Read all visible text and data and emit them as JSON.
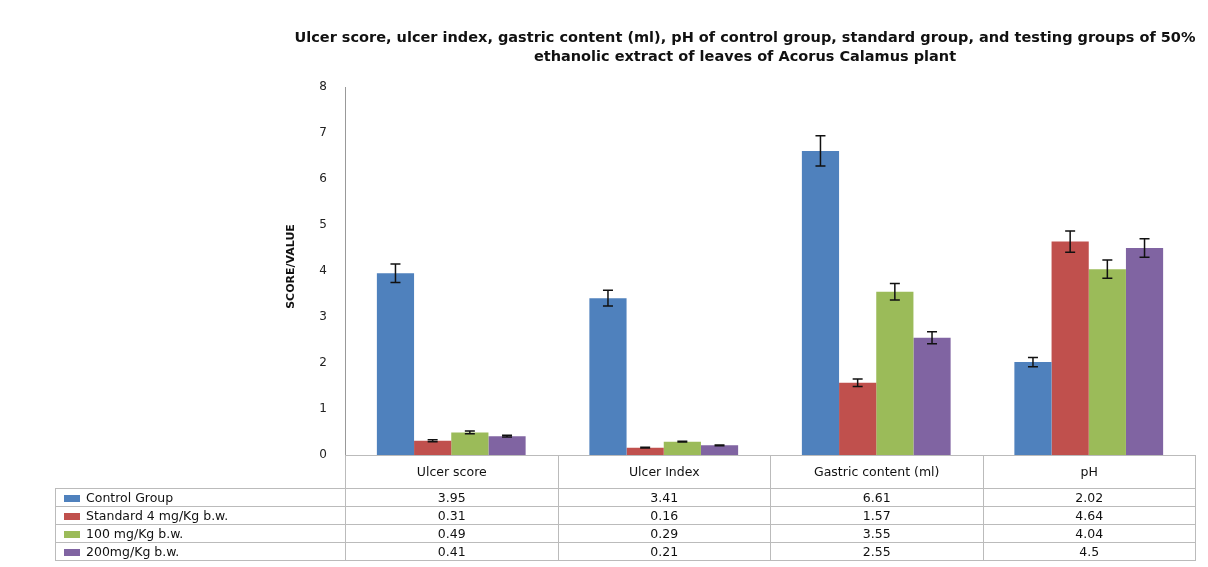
{
  "chart_data": {
    "type": "bar",
    "title": "Ulcer score, ulcer index, gastric content (ml), pH of control group, standard group, and testing groups of 50% ethanolic extract of leaves of Acorus Calamus plant",
    "ylabel": "SCORE/VALUE",
    "categories": [
      "Ulcer score",
      "Ulcer Index",
      "Gastric content (ml)",
      "pH"
    ],
    "series": [
      {
        "name": "Control Group",
        "color": "#4f81bd",
        "values": [
          3.95,
          3.41,
          6.61,
          2.02
        ],
        "errors": [
          0.2,
          0.17,
          0.33,
          0.1
        ]
      },
      {
        "name": "Standard 4 mg/Kg b.w.",
        "color": "#c0504d",
        "values": [
          0.31,
          0.16,
          1.57,
          4.64
        ],
        "errors": [
          0.02,
          0.01,
          0.08,
          0.23
        ]
      },
      {
        "name": "100 mg/Kg b.w.",
        "color": "#9bbb59",
        "values": [
          0.49,
          0.29,
          3.55,
          4.04
        ],
        "errors": [
          0.03,
          0.01,
          0.18,
          0.2
        ]
      },
      {
        "name": "200mg/Kg b.w.",
        "color": "#8064a2",
        "values": [
          0.41,
          0.21,
          2.55,
          4.5
        ],
        "errors": [
          0.02,
          0.01,
          0.13,
          0.2
        ]
      }
    ],
    "ylim": [
      0,
      8
    ],
    "yticks": [
      0,
      1,
      2,
      3,
      4,
      5,
      6,
      7,
      8
    ],
    "grid": false,
    "legend": "bottom",
    "data_labels": true
  }
}
